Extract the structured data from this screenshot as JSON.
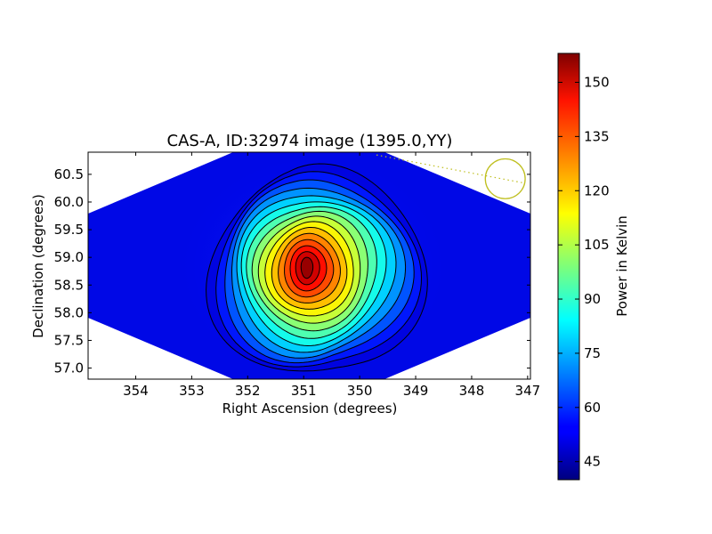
{
  "chart_data": {
    "type": "heatmap",
    "title": "CAS-A, ID:32974 image (1395.0,YY)",
    "xlabel": "Right Ascension (degrees)",
    "ylabel": "Declination (degrees)",
    "xlim": [
      354.85,
      346.95
    ],
    "ylim": [
      56.8,
      60.9
    ],
    "x_ticks": [
      354,
      353,
      352,
      351,
      350,
      349,
      348,
      347
    ],
    "y_ticks": [
      57.0,
      57.5,
      58.0,
      58.5,
      59.0,
      59.5,
      60.0,
      60.5
    ],
    "x_tick_labels": [
      "354",
      "353",
      "352",
      "351",
      "350",
      "349",
      "348",
      "347"
    ],
    "y_tick_labels": [
      "57.0",
      "57.5",
      "58.0",
      "58.5",
      "59.0",
      "59.5",
      "60.0",
      "60.5"
    ],
    "colormap": "jet",
    "colorbar": {
      "label": "Power in Kelvin",
      "range": [
        40,
        158
      ],
      "ticks": [
        45,
        60,
        75,
        90,
        105,
        120,
        135,
        150
      ],
      "tick_labels": [
        "45",
        "60",
        "75",
        "90",
        "105",
        "120",
        "135",
        "150"
      ]
    },
    "peak": {
      "ra": 350.95,
      "dec": 58.82,
      "value": 156
    },
    "background_value": 42,
    "contour_count": 16,
    "grid": false,
    "legend": "none",
    "beam_marker": {
      "ra": 347.4,
      "dec": 60.42,
      "radius_deg": 0.36,
      "color": "#bfbf1f"
    },
    "dotted_track": {
      "points": [
        [
          349.7,
          60.85
        ],
        [
          347.1,
          60.35
        ]
      ],
      "color": "#bfbf1f"
    }
  }
}
